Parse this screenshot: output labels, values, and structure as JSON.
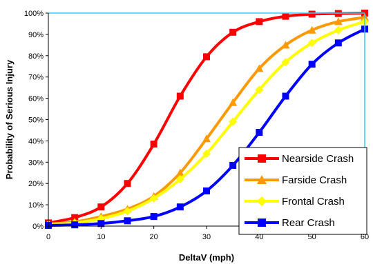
{
  "chart_data": {
    "type": "line",
    "title": "",
    "xlabel": "DeltaV (mph)",
    "ylabel": "Probability of Serious Injury",
    "xlim": [
      0,
      60
    ],
    "ylim": [
      0,
      100
    ],
    "x_ticks": [
      0,
      10,
      20,
      30,
      40,
      50,
      60
    ],
    "y_ticks": [
      0,
      10,
      20,
      30,
      40,
      50,
      60,
      70,
      80,
      90,
      100
    ],
    "y_tick_format": "percent",
    "grid": "none",
    "legend_position": "bottom-right",
    "x": [
      0,
      5,
      10,
      15,
      20,
      25,
      30,
      35,
      40,
      45,
      50,
      55,
      60
    ],
    "series": [
      {
        "name": "Nearside Crash",
        "color": "#FF0000",
        "marker": "square",
        "values": [
          1.5,
          4,
          9,
          20,
          38.5,
          61,
          79.5,
          91,
          96,
          98.5,
          99.5,
          99.8,
          100
        ]
      },
      {
        "name": "Farside Crash",
        "color": "#FF9900",
        "marker": "triangle",
        "values": [
          1,
          2,
          4.5,
          8,
          14,
          25,
          41,
          58,
          74,
          85,
          92,
          96,
          98
        ]
      },
      {
        "name": "Frontal Crash",
        "color": "#FFFF00",
        "marker": "diamond",
        "values": [
          0.8,
          1.5,
          3.5,
          7,
          13,
          22,
          34,
          49,
          64,
          77,
          86,
          92,
          96
        ]
      },
      {
        "name": "Rear Crash",
        "color": "#0000FF",
        "marker": "square",
        "values": [
          0.3,
          0.6,
          1.2,
          2.5,
          4.5,
          9,
          16.5,
          28.5,
          44,
          61,
          76,
          86,
          92.5
        ]
      }
    ]
  }
}
